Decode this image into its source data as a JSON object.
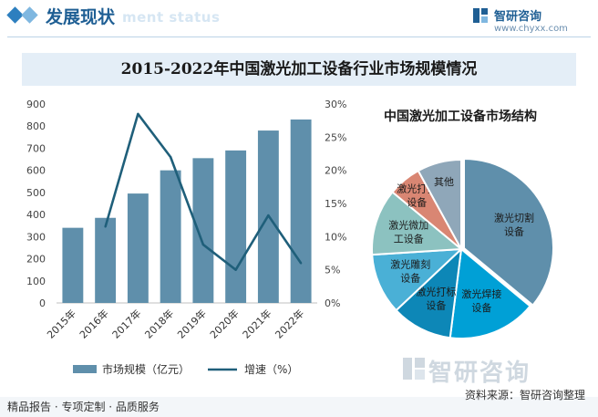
{
  "header": {
    "title": "发展现状",
    "subtitle": "ment status"
  },
  "brand": {
    "name": "智研咨询",
    "url": "www.chyxx.com"
  },
  "watermark": {
    "brand": "智研咨询"
  },
  "footer": {
    "left": "精品报告 · 专项定制 · 品质服务",
    "source": "资料来源：智研咨询整理"
  },
  "colors": {
    "accent": "#1f5f94",
    "bar": "#5f8fab",
    "line": "#1f5f7a"
  },
  "chart_data": [
    {
      "type": "bar",
      "title": "2015-2022年中国激光加工设备行业市场规模情况",
      "categories": [
        "2015年",
        "2016年",
        "2017年",
        "2018年",
        "2019年",
        "2020年",
        "2021年",
        "2022年"
      ],
      "series": [
        {
          "name": "市场规模（亿元）",
          "type": "bar",
          "axis": "left",
          "values": [
            340,
            385,
            495,
            600,
            655,
            690,
            780,
            830
          ]
        },
        {
          "name": "增速（%）",
          "type": "line",
          "axis": "right",
          "values": [
            null,
            11.5,
            28.5,
            22,
            8.8,
            5,
            13.2,
            6
          ]
        }
      ],
      "ylim": [
        0,
        900
      ],
      "yticks": [
        "0",
        "100",
        "200",
        "300",
        "400",
        "500",
        "600",
        "700",
        "800",
        "900"
      ],
      "y2lim": [
        0,
        30
      ],
      "y2ticks": [
        "0%",
        "5%",
        "10%",
        "15%",
        "20%",
        "25%",
        "30%"
      ],
      "legend": "bottom"
    },
    {
      "type": "pie",
      "title": "中国激光加工设备市场结构",
      "labels": [
        "激光切割设备",
        "激光焊接设备",
        "激光打标设备",
        "激光雕刻设备",
        "激光微加工设备",
        "激光打孔设备",
        "其他"
      ],
      "values": [
        36,
        16,
        11,
        11,
        12,
        6,
        8
      ],
      "colors": [
        "#5f8fab",
        "#00a0d6",
        "#0d87b7",
        "#4ab0d6",
        "#8cc2c0",
        "#d98673",
        "#8fa7b9"
      ]
    }
  ]
}
